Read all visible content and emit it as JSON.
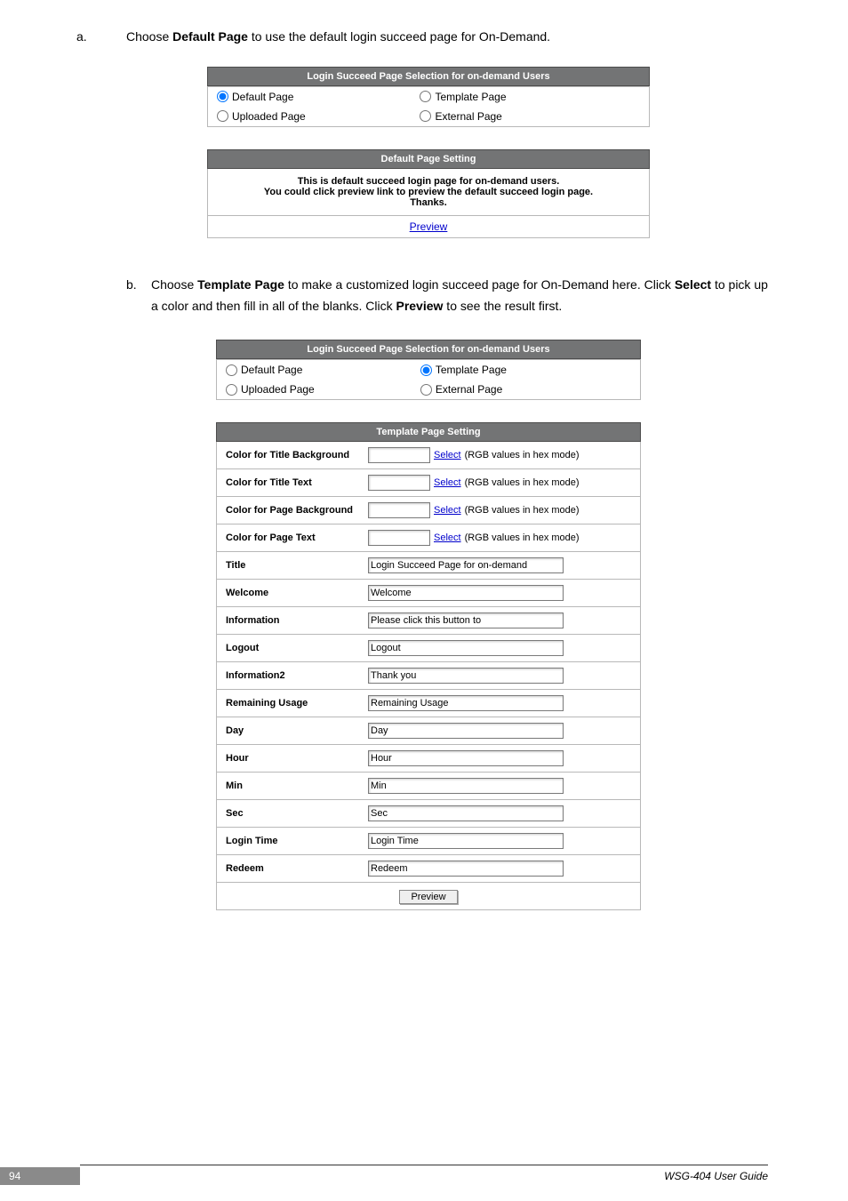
{
  "sectionA": {
    "marker": "a.",
    "text_pre": "Choose ",
    "text_bold": "Default Page",
    "text_post": " to use the default login succeed page for On-Demand."
  },
  "boxA": {
    "header": "Login Succeed Page Selection for on-demand Users",
    "opt1": "Default Page",
    "opt2": "Template Page",
    "opt3": "Uploaded Page",
    "opt4": "External Page",
    "header2": "Default Page Setting",
    "msg1": "This is default succeed login page for on-demand users.",
    "msg2": "You could click preview link to preview the default succeed login page.",
    "msg3": "Thanks.",
    "preview": "Preview"
  },
  "sectionB": {
    "marker": "b.",
    "part1": "Choose ",
    "bold1": "Template Page",
    "part2": " to make a customized login succeed page for On-Demand here. Click ",
    "bold2": "Select",
    "part3": " to pick up a color and then fill in all of the blanks. Click ",
    "bold3": "Preview",
    "part4": " to see the result first."
  },
  "boxB": {
    "header": "Login Succeed Page Selection for on-demand Users",
    "opt1": "Default Page",
    "opt2": "Template Page",
    "opt3": "Uploaded Page",
    "opt4": "External Page",
    "header2": "Template Page Setting",
    "rows": {
      "r1": {
        "label": "Color for Title Background",
        "hex": "(RGB values in hex mode)"
      },
      "r2": {
        "label": "Color for Title Text",
        "hex": "(RGB values in hex mode)"
      },
      "r3": {
        "label": "Color for Page Background",
        "hex": "(RGB values in hex mode)"
      },
      "r4": {
        "label": "Color for Page Text",
        "hex": "(RGB values in hex mode)"
      },
      "r5": {
        "label": "Title",
        "val": "Login Succeed Page for on-demand"
      },
      "r6": {
        "label": "Welcome",
        "val": "Welcome"
      },
      "r7": {
        "label": "Information",
        "val": "Please click this button to"
      },
      "r8": {
        "label": "Logout",
        "val": "Logout"
      },
      "r9": {
        "label": "Information2",
        "val": "Thank you"
      },
      "r10": {
        "label": "Remaining Usage",
        "val": "Remaining Usage"
      },
      "r11": {
        "label": "Day",
        "val": "Day"
      },
      "r12": {
        "label": "Hour",
        "val": "Hour"
      },
      "r13": {
        "label": "Min",
        "val": "Min"
      },
      "r14": {
        "label": "Sec",
        "val": "Sec"
      },
      "r15": {
        "label": "Login Time",
        "val": "Login Time"
      },
      "r16": {
        "label": "Redeem",
        "val": "Redeem"
      }
    },
    "select": "Select",
    "preview": "Preview"
  },
  "footer": {
    "page": "94",
    "guide": "WSG-404  User Guide"
  },
  "colors": {
    "header_bg": "#737475",
    "header_text": "#ffffff",
    "border": "#b8b8b8",
    "link": "#0000cc",
    "pagenum_bg": "#8a8a8a"
  }
}
